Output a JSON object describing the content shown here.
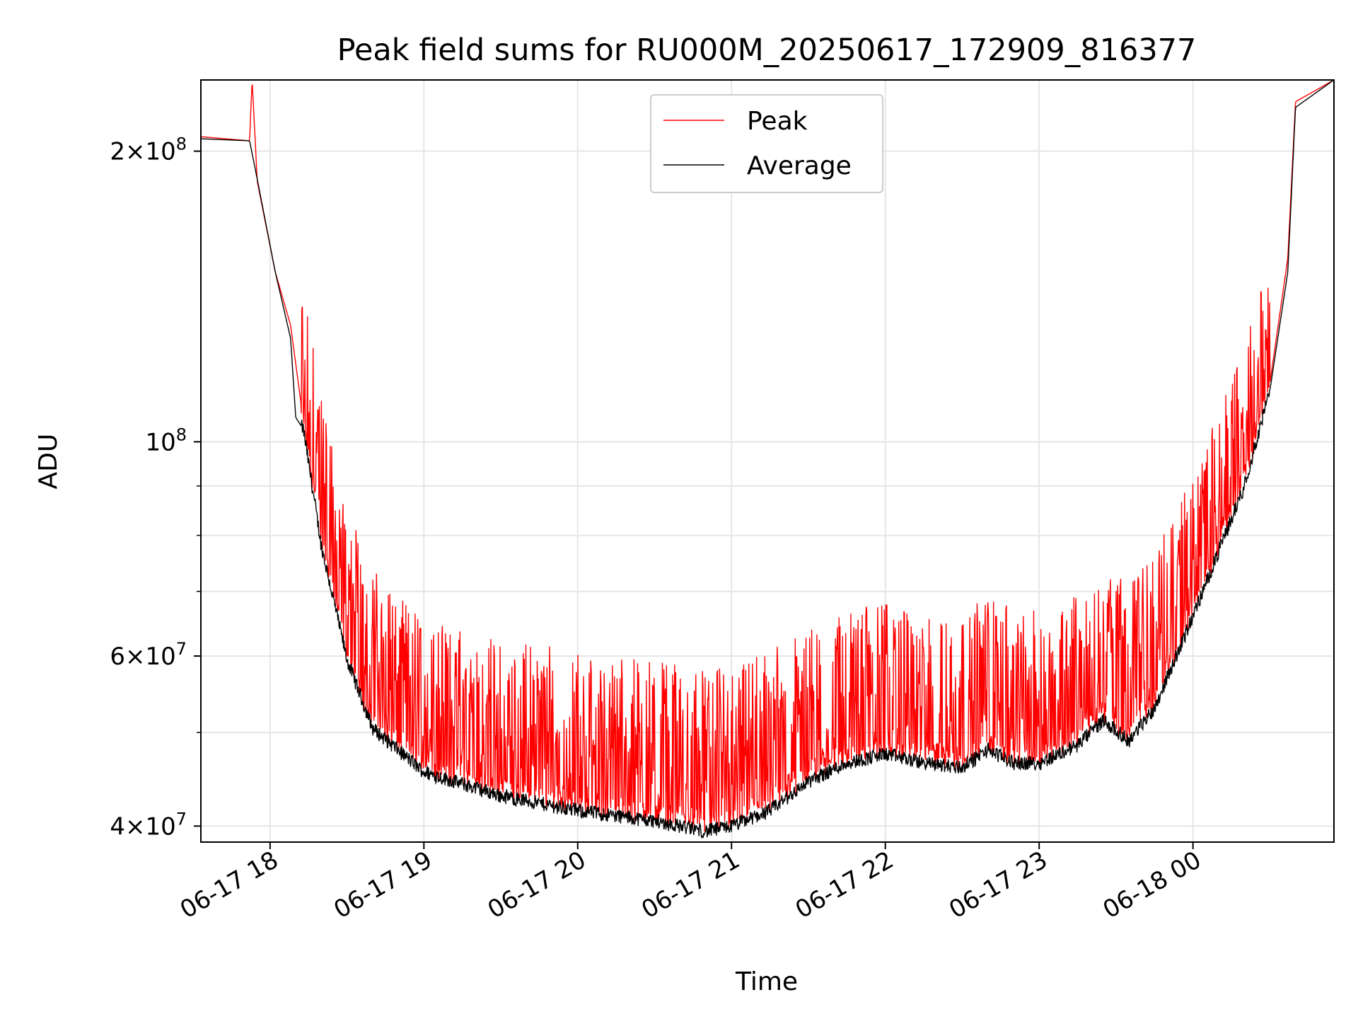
{
  "chart_data": {
    "type": "line",
    "title": "Peak field sums for RU000M_20250617_172909_816377",
    "xlabel": "Time",
    "ylabel": "ADU",
    "yscale": "log",
    "ylim": [
      38500000,
      237000000
    ],
    "xlim": [
      "2025-06-17 17:33",
      "2025-06-18 00:55"
    ],
    "grid": true,
    "legend": "upper center",
    "x_ticks": [
      {
        "value": "2025-06-17 18:00",
        "label": "06-17 18"
      },
      {
        "value": "2025-06-17 19:00",
        "label": "06-17 19"
      },
      {
        "value": "2025-06-17 20:00",
        "label": "06-17 20"
      },
      {
        "value": "2025-06-17 21:00",
        "label": "06-17 21"
      },
      {
        "value": "2025-06-17 22:00",
        "label": "06-17 22"
      },
      {
        "value": "2025-06-17 23:00",
        "label": "06-17 23"
      },
      {
        "value": "2025-06-18 00:00",
        "label": "06-18 00"
      }
    ],
    "y_ticks": [
      {
        "value": 40000000,
        "mantissa": "4",
        "exp": "7"
      },
      {
        "value": 60000000,
        "mantissa": "6",
        "exp": "7"
      },
      {
        "value": 100000000,
        "mantissa": "",
        "exp": "8"
      },
      {
        "value": 200000000,
        "mantissa": "2",
        "exp": "8"
      }
    ],
    "y_minor_gridlines": [
      50000000,
      70000000,
      80000000,
      90000000
    ],
    "series": [
      {
        "name": "Peak",
        "color": "#ff0000",
        "x": [
          "2025-06-17 17:33",
          "2025-06-17 17:52",
          "2025-06-17 17:53",
          "2025-06-17 17:55",
          "2025-06-17 18:02",
          "2025-06-17 18:08",
          "2025-06-17 18:12",
          "2025-06-17 18:15",
          "2025-06-17 18:20",
          "2025-06-17 18:30",
          "2025-06-17 18:40",
          "2025-06-17 19:00",
          "2025-06-17 19:30",
          "2025-06-17 20:00",
          "2025-06-17 20:30",
          "2025-06-17 20:50",
          "2025-06-17 21:00",
          "2025-06-17 21:15",
          "2025-06-17 21:30",
          "2025-06-17 21:45",
          "2025-06-17 22:00",
          "2025-06-17 22:15",
          "2025-06-17 22:30",
          "2025-06-17 22:40",
          "2025-06-17 22:50",
          "2025-06-17 23:00",
          "2025-06-17 23:15",
          "2025-06-17 23:25",
          "2025-06-17 23:35",
          "2025-06-17 23:45",
          "2025-06-18 00:00",
          "2025-06-18 00:10",
          "2025-06-18 00:20",
          "2025-06-18 00:30",
          "2025-06-18 00:37",
          "2025-06-18 00:40",
          "2025-06-18 00:55"
        ],
        "values": [
          207000000,
          205000000,
          237000000,
          186000000,
          150000000,
          132000000,
          110000000,
          104000000,
          80000000,
          62000000,
          54000000,
          47500000,
          45500000,
          44000000,
          43000000,
          42000000,
          42500000,
          44000000,
          46500000,
          48500000,
          49500000,
          48000000,
          48000000,
          50500000,
          48500000,
          48500000,
          50500000,
          53500000,
          52500000,
          55500000,
          67000000,
          78000000,
          91000000,
          115000000,
          155000000,
          225000000,
          237000000
        ]
      },
      {
        "name": "Average",
        "color": "#000000",
        "x": [
          "2025-06-17 17:33",
          "2025-06-17 17:52",
          "2025-06-17 17:55",
          "2025-06-17 18:02",
          "2025-06-17 18:08",
          "2025-06-17 18:10",
          "2025-06-17 18:13",
          "2025-06-17 18:20",
          "2025-06-17 18:30",
          "2025-06-17 18:40",
          "2025-06-17 19:00",
          "2025-06-17 19:30",
          "2025-06-17 20:00",
          "2025-06-17 20:30",
          "2025-06-17 20:50",
          "2025-06-17 21:00",
          "2025-06-17 21:15",
          "2025-06-17 21:30",
          "2025-06-17 21:45",
          "2025-06-17 22:00",
          "2025-06-17 22:15",
          "2025-06-17 22:30",
          "2025-06-17 22:40",
          "2025-06-17 22:50",
          "2025-06-17 23:00",
          "2025-06-17 23:15",
          "2025-06-17 23:25",
          "2025-06-17 23:35",
          "2025-06-17 23:45",
          "2025-06-18 00:00",
          "2025-06-18 00:10",
          "2025-06-18 00:20",
          "2025-06-18 00:30",
          "2025-06-18 00:37",
          "2025-06-18 00:40",
          "2025-06-18 00:55"
        ],
        "values": [
          206000000,
          205000000,
          187000000,
          150000000,
          128000000,
          106000000,
          103000000,
          78000000,
          59500000,
          50500000,
          45500000,
          43000000,
          41500000,
          40500000,
          39500000,
          40000000,
          41500000,
          44500000,
          46500000,
          47500000,
          46500000,
          46000000,
          48000000,
          46500000,
          46500000,
          48500000,
          51500000,
          49000000,
          53000000,
          66000000,
          77000000,
          90000000,
          113000000,
          150000000,
          222000000,
          237000000
        ]
      }
    ]
  }
}
